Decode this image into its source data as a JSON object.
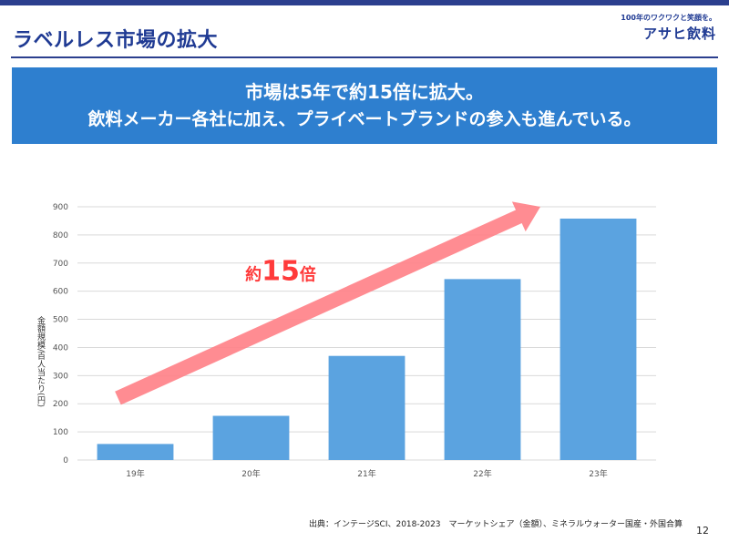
{
  "header": {
    "title": "ラベルレス市場の拡大",
    "logo_tagline": "100年のワクワクと笑顔を。",
    "logo_brand": "アサヒ飲料"
  },
  "banner": {
    "line1": "市場は5年で約15倍に拡大。",
    "line2": "飲料メーカー各社に加え、プライベートブランドの参入も進んでいる。"
  },
  "chart_data": {
    "type": "bar",
    "categories": [
      "19年",
      "20年",
      "21年",
      "22年",
      "23年"
    ],
    "values": [
      57,
      157,
      370,
      643,
      858
    ],
    "ylabel": "金額規模/百人当たり(円)",
    "ylim": [
      0,
      900
    ],
    "yticks": [
      0,
      100,
      200,
      300,
      400,
      500,
      600,
      700,
      800,
      900
    ],
    "grid": true,
    "bar_color": "#5ba3e0",
    "annotation": {
      "prefix": "約",
      "number": "15",
      "suffix": "倍",
      "color": "#ff3b3b"
    },
    "arrow_color": "#ff7f86"
  },
  "footer": {
    "source": "出典：インテージSCI、2018-2023　マーケットシェア（金額）、ミネラルウォーター国産・外国合算",
    "page_number": "12"
  }
}
